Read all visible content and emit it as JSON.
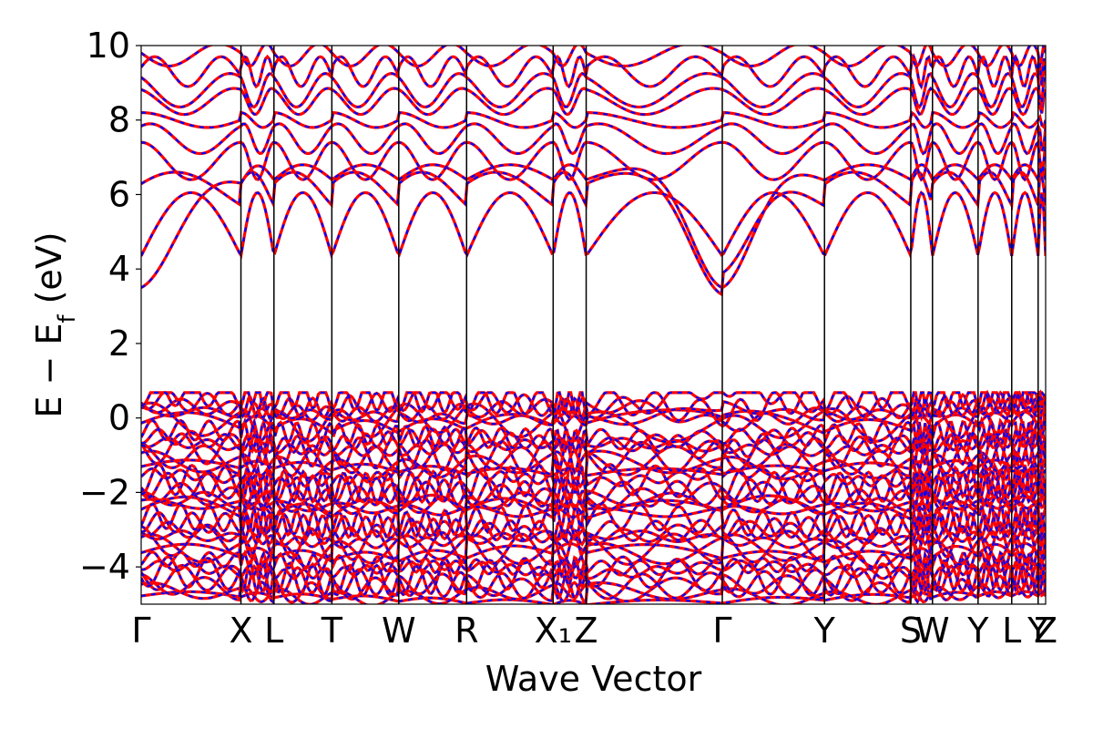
{
  "chart_data": {
    "type": "line",
    "title": "",
    "xlabel": "Wave Vector",
    "ylabel": "E − E_f (eV)",
    "ylabel_parts": [
      "E − E",
      "f",
      " (eV)"
    ],
    "ylim": [
      -5,
      10
    ],
    "yticks": [
      -4,
      -2,
      0,
      2,
      4,
      6,
      8,
      10
    ],
    "ytick_labels": [
      "−4",
      "−2",
      "0",
      "2",
      "4",
      "6",
      "8",
      "10"
    ],
    "grid": false,
    "high_symmetry_points": [
      {
        "label": "Γ",
        "x": 0.0
      },
      {
        "label": "X",
        "x": 0.1103
      },
      {
        "label": "L",
        "x": 0.1468
      },
      {
        "label": "T",
        "x": 0.2108
      },
      {
        "label": "W",
        "x": 0.2848
      },
      {
        "label": "R",
        "x": 0.3598
      },
      {
        "label": "X₁",
        "x": 0.4555
      },
      {
        "label": "Z",
        "x": 0.492
      },
      {
        "label": "Γ",
        "x": 0.6425
      },
      {
        "label": "Y",
        "x": 0.7555
      },
      {
        "label": "S",
        "x": 0.8509
      },
      {
        "label": "W",
        "x": 0.8749
      },
      {
        "label": "Y",
        "x": 0.9253
      },
      {
        "label": "L",
        "x": 0.9625
      },
      {
        "label": "Y",
        "x": 0.9917
      },
      {
        "label": "Z",
        "x": 1.0
      }
    ],
    "series": [
      {
        "color": "#ff0000",
        "style": "solid"
      },
      {
        "color": "#0000ff",
        "style": "dashed"
      }
    ],
    "conduction_band_minimum": {
      "x": 0.6425,
      "y": 3.5
    },
    "valence_band_maximum_approx": 0.68
  }
}
